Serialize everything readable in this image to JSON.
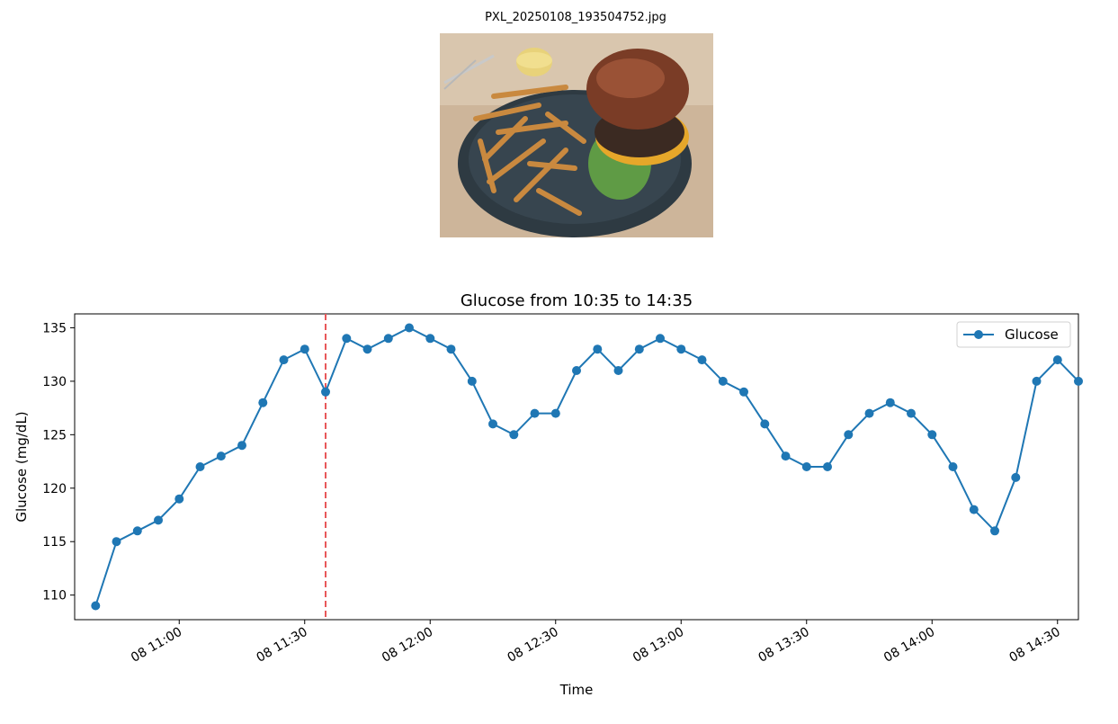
{
  "image": {
    "filename": "PXL_20250108_193504752.jpg",
    "description_icon": "burger-fries-photo"
  },
  "chart_data": {
    "type": "line",
    "title": "Glucose from 10:35 to 14:35",
    "xlabel": "Time",
    "ylabel": "Glucose (mg/dL)",
    "x_type": "time",
    "xlim": [
      "10:35",
      "14:35"
    ],
    "ylim": [
      107.7,
      136.3
    ],
    "yticks": [
      110,
      115,
      120,
      125,
      130,
      135
    ],
    "xticks": [
      {
        "time": "11:00",
        "label": "08 11:00"
      },
      {
        "time": "11:30",
        "label": "08 11:30"
      },
      {
        "time": "12:00",
        "label": "08 12:00"
      },
      {
        "time": "12:30",
        "label": "08 12:30"
      },
      {
        "time": "13:00",
        "label": "08 13:00"
      },
      {
        "time": "13:30",
        "label": "08 13:30"
      },
      {
        "time": "14:00",
        "label": "08 14:00"
      },
      {
        "time": "14:30",
        "label": "08 14:30"
      }
    ],
    "grid": false,
    "legend": "top-right",
    "meal_marker_time": "11:35",
    "series": [
      {
        "name": "Glucose",
        "color": "#1f77b4",
        "x": [
          "10:40",
          "10:45",
          "10:50",
          "10:55",
          "11:00",
          "11:05",
          "11:10",
          "11:15",
          "11:20",
          "11:25",
          "11:30",
          "11:35",
          "11:40",
          "11:45",
          "11:50",
          "11:55",
          "12:00",
          "12:05",
          "12:10",
          "12:15",
          "12:20",
          "12:25",
          "12:30",
          "12:35",
          "12:40",
          "12:45",
          "12:50",
          "12:55",
          "13:00",
          "13:05",
          "13:10",
          "13:15",
          "13:20",
          "13:25",
          "13:30",
          "13:35",
          "13:40",
          "13:45",
          "13:50",
          "13:55",
          "14:00",
          "14:05",
          "14:10",
          "14:15",
          "14:20",
          "14:25",
          "14:30",
          "14:35"
        ],
        "y": [
          109,
          115,
          116,
          117,
          119,
          122,
          123,
          124,
          128,
          132,
          133,
          129,
          134,
          133,
          134,
          135,
          134,
          133,
          130,
          126,
          125,
          127,
          127,
          131,
          133,
          131,
          133,
          134,
          133,
          132,
          130,
          129,
          126,
          123,
          122,
          122,
          125,
          127,
          128,
          127,
          125,
          122,
          118,
          116,
          121,
          130,
          132,
          130
        ]
      }
    ],
    "marker_color": "#e8585a"
  }
}
